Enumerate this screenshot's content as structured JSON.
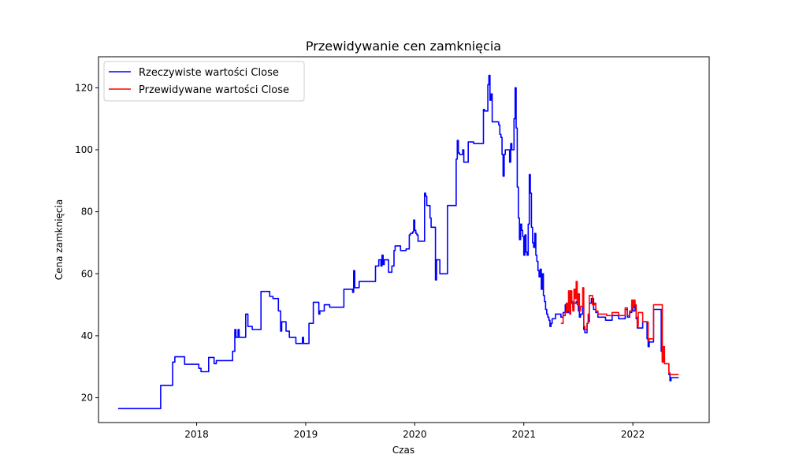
{
  "chart_data": {
    "type": "line",
    "title": "Przewidywanie cen zamknięcia",
    "xlabel": "Czas",
    "ylabel": "Cena zamknięcia",
    "xlim": [
      2017.1,
      2022.7
    ],
    "ylim": [
      12,
      130
    ],
    "xticks": [
      2018,
      2019,
      2020,
      2021,
      2022
    ],
    "yticks": [
      20,
      40,
      60,
      80,
      100,
      120
    ],
    "grid": false,
    "legend_position": "top-left",
    "series": [
      {
        "name": "Rzeczywiste wartości Close",
        "color": "#0000ff",
        "step": true,
        "points": [
          [
            2017.28,
            16.5
          ],
          [
            2017.66,
            16.5
          ],
          [
            2017.67,
            24.0
          ],
          [
            2017.76,
            24.0
          ],
          [
            2017.78,
            31.5
          ],
          [
            2017.8,
            33.2
          ],
          [
            2017.88,
            33.2
          ],
          [
            2017.89,
            30.8
          ],
          [
            2018.0,
            30.8
          ],
          [
            2018.02,
            29.5
          ],
          [
            2018.04,
            28.4
          ],
          [
            2018.1,
            28.4
          ],
          [
            2018.11,
            33.0
          ],
          [
            2018.15,
            33.0
          ],
          [
            2018.16,
            31.0
          ],
          [
            2018.18,
            32.0
          ],
          [
            2018.2,
            32.0
          ],
          [
            2018.3,
            32.0
          ],
          [
            2018.33,
            35.0
          ],
          [
            2018.35,
            42.0
          ],
          [
            2018.36,
            39.5
          ],
          [
            2018.38,
            42.0
          ],
          [
            2018.39,
            39.5
          ],
          [
            2018.44,
            39.5
          ],
          [
            2018.45,
            47.0
          ],
          [
            2018.47,
            43.0
          ],
          [
            2018.51,
            42.0
          ],
          [
            2018.58,
            42.0
          ],
          [
            2018.59,
            54.3
          ],
          [
            2018.66,
            54.3
          ],
          [
            2018.67,
            52.7
          ],
          [
            2018.7,
            52.0
          ],
          [
            2018.74,
            52.0
          ],
          [
            2018.75,
            48.0
          ],
          [
            2018.77,
            41.5
          ],
          [
            2018.78,
            44.5
          ],
          [
            2018.8,
            44.5
          ],
          [
            2018.82,
            41.5
          ],
          [
            2018.83,
            41.5
          ],
          [
            2018.85,
            39.5
          ],
          [
            2018.9,
            39.5
          ],
          [
            2018.91,
            37.5
          ],
          [
            2018.96,
            37.5
          ],
          [
            2018.97,
            39.5
          ],
          [
            2018.98,
            37.5
          ],
          [
            2019.02,
            37.5
          ],
          [
            2019.03,
            44.0
          ],
          [
            2019.06,
            44.0
          ],
          [
            2019.07,
            50.8
          ],
          [
            2019.11,
            50.8
          ],
          [
            2019.12,
            47.0
          ],
          [
            2019.13,
            48.0
          ],
          [
            2019.16,
            48.0
          ],
          [
            2019.17,
            50.0
          ],
          [
            2019.21,
            50.0
          ],
          [
            2019.22,
            49.2
          ],
          [
            2019.34,
            49.2
          ],
          [
            2019.35,
            55.0
          ],
          [
            2019.42,
            55.0
          ],
          [
            2019.43,
            54.0
          ],
          [
            2019.44,
            61.0
          ],
          [
            2019.45,
            55.5
          ],
          [
            2019.48,
            55.5
          ],
          [
            2019.49,
            57.5
          ],
          [
            2019.63,
            57.5
          ],
          [
            2019.64,
            62.5
          ],
          [
            2019.66,
            62.5
          ],
          [
            2019.67,
            64.5
          ],
          [
            2019.69,
            62.5
          ],
          [
            2019.7,
            66.0
          ],
          [
            2019.71,
            63.0
          ],
          [
            2019.72,
            64.5
          ],
          [
            2019.75,
            64.5
          ],
          [
            2019.76,
            60.5
          ],
          [
            2019.78,
            60.5
          ],
          [
            2019.79,
            62.5
          ],
          [
            2019.8,
            62.5
          ],
          [
            2019.81,
            67.5
          ],
          [
            2019.82,
            69.0
          ],
          [
            2019.86,
            69.0
          ],
          [
            2019.87,
            67.5
          ],
          [
            2019.91,
            67.5
          ],
          [
            2019.92,
            68.0
          ],
          [
            2019.94,
            68.0
          ],
          [
            2019.95,
            72.5
          ],
          [
            2019.96,
            73.0
          ],
          [
            2019.98,
            73.5
          ],
          [
            2019.99,
            77.3
          ],
          [
            2020.0,
            74.0
          ],
          [
            2020.01,
            73.0
          ],
          [
            2020.02,
            72.5
          ],
          [
            2020.03,
            70.5
          ],
          [
            2020.08,
            70.5
          ],
          [
            2020.09,
            86.0
          ],
          [
            2020.1,
            85.0
          ],
          [
            2020.11,
            82.0
          ],
          [
            2020.12,
            82.0
          ],
          [
            2020.14,
            78.0
          ],
          [
            2020.15,
            75.0
          ],
          [
            2020.18,
            75.0
          ],
          [
            2020.19,
            58.0
          ],
          [
            2020.2,
            64.5
          ],
          [
            2020.22,
            64.5
          ],
          [
            2020.23,
            60.0
          ],
          [
            2020.29,
            60.0
          ],
          [
            2020.3,
            82.0
          ],
          [
            2020.37,
            82.0
          ],
          [
            2020.38,
            97.0
          ],
          [
            2020.39,
            103.0
          ],
          [
            2020.4,
            99.0
          ],
          [
            2020.41,
            98.5
          ],
          [
            2020.43,
            98.5
          ],
          [
            2020.44,
            100.0
          ],
          [
            2020.45,
            96.0
          ],
          [
            2020.48,
            96.0
          ],
          [
            2020.49,
            102.5
          ],
          [
            2020.53,
            102.5
          ],
          [
            2020.54,
            102.0
          ],
          [
            2020.62,
            102.0
          ],
          [
            2020.63,
            113.0
          ],
          [
            2020.64,
            112.5
          ],
          [
            2020.66,
            112.5
          ],
          [
            2020.67,
            121.0
          ],
          [
            2020.68,
            124.0
          ],
          [
            2020.69,
            116.0
          ],
          [
            2020.7,
            118.0
          ],
          [
            2020.71,
            109.0
          ],
          [
            2020.76,
            109.0
          ],
          [
            2020.77,
            108.0
          ],
          [
            2020.78,
            105.0
          ],
          [
            2020.79,
            104.0
          ],
          [
            2020.8,
            98.5
          ],
          [
            2020.81,
            91.5
          ],
          [
            2020.82,
            98.5
          ],
          [
            2020.83,
            100.0
          ],
          [
            2020.86,
            100.0
          ],
          [
            2020.87,
            96.0
          ],
          [
            2020.88,
            102.0
          ],
          [
            2020.89,
            100.0
          ],
          [
            2020.9,
            100.0
          ],
          [
            2020.91,
            110.0
          ],
          [
            2020.92,
            120.0
          ],
          [
            2020.93,
            107.0
          ],
          [
            2020.94,
            88.0
          ],
          [
            2020.95,
            78.0
          ],
          [
            2020.96,
            71.0
          ],
          [
            2020.97,
            76.0
          ],
          [
            2020.98,
            74.0
          ],
          [
            2020.99,
            72.0
          ],
          [
            2021.0,
            66.0
          ],
          [
            2021.01,
            72.5
          ],
          [
            2021.02,
            67.0
          ],
          [
            2021.03,
            66.0
          ],
          [
            2021.04,
            76.0
          ],
          [
            2021.05,
            92.0
          ],
          [
            2021.06,
            86.0
          ],
          [
            2021.07,
            75.0
          ],
          [
            2021.08,
            70.0
          ],
          [
            2021.09,
            68.5
          ],
          [
            2021.1,
            73.0
          ],
          [
            2021.11,
            66.0
          ],
          [
            2021.12,
            64.0
          ],
          [
            2021.13,
            61.0
          ],
          [
            2021.14,
            59.0
          ],
          [
            2021.15,
            61.5
          ],
          [
            2021.16,
            55.0
          ],
          [
            2021.17,
            60.0
          ],
          [
            2021.18,
            53.0
          ],
          [
            2021.19,
            51.0
          ],
          [
            2021.2,
            48.5
          ],
          [
            2021.21,
            47.0
          ],
          [
            2021.22,
            46.0
          ],
          [
            2021.23,
            45.0
          ],
          [
            2021.24,
            43.0
          ],
          [
            2021.25,
            44.0
          ],
          [
            2021.26,
            45.5
          ],
          [
            2021.28,
            45.5
          ],
          [
            2021.29,
            47.0
          ],
          [
            2021.31,
            47.0
          ],
          [
            2021.32,
            47.0
          ],
          [
            2021.34,
            46.0
          ],
          [
            2021.36,
            47.5
          ],
          [
            2021.38,
            50.0
          ],
          [
            2021.39,
            49.5
          ],
          [
            2021.4,
            47.5
          ],
          [
            2021.41,
            49.0
          ],
          [
            2021.43,
            52.5
          ],
          [
            2021.44,
            50.5
          ],
          [
            2021.45,
            49.0
          ],
          [
            2021.46,
            50.5
          ],
          [
            2021.48,
            51.0
          ],
          [
            2021.5,
            48.0
          ],
          [
            2021.51,
            46.0
          ],
          [
            2021.52,
            47.0
          ],
          [
            2021.54,
            49.5
          ],
          [
            2021.55,
            42.0
          ],
          [
            2021.56,
            41.0
          ],
          [
            2021.58,
            44.0
          ],
          [
            2021.59,
            44.5
          ],
          [
            2021.6,
            50.5
          ],
          [
            2021.62,
            52.0
          ],
          [
            2021.64,
            48.5
          ],
          [
            2021.66,
            47.5
          ],
          [
            2021.68,
            46.0
          ],
          [
            2021.74,
            46.0
          ],
          [
            2021.75,
            45.0
          ],
          [
            2021.8,
            45.0
          ],
          [
            2021.81,
            46.5
          ],
          [
            2021.86,
            46.5
          ],
          [
            2021.87,
            45.5
          ],
          [
            2021.92,
            45.5
          ],
          [
            2021.93,
            48.5
          ],
          [
            2021.95,
            46.0
          ],
          [
            2021.97,
            47.5
          ],
          [
            2021.99,
            50.0
          ],
          [
            2022.0,
            48.0
          ],
          [
            2022.02,
            50.0
          ],
          [
            2022.03,
            45.5
          ],
          [
            2022.04,
            42.5
          ],
          [
            2022.08,
            42.5
          ],
          [
            2022.09,
            44.5
          ],
          [
            2022.12,
            44.5
          ],
          [
            2022.13,
            39.0
          ],
          [
            2022.14,
            36.5
          ],
          [
            2022.15,
            38.0
          ],
          [
            2022.17,
            38.0
          ],
          [
            2022.18,
            38.0
          ],
          [
            2022.19,
            48.5
          ],
          [
            2022.25,
            48.5
          ],
          [
            2022.26,
            35.0
          ],
          [
            2022.27,
            31.5
          ],
          [
            2022.28,
            33.0
          ],
          [
            2022.29,
            31.0
          ],
          [
            2022.31,
            31.0
          ],
          [
            2022.33,
            27.5
          ],
          [
            2022.34,
            25.5
          ],
          [
            2022.35,
            26.5
          ],
          [
            2022.42,
            26.5
          ]
        ]
      },
      {
        "name": "Przewidywane wartości Close",
        "color": "#ff0000",
        "step": true,
        "points": [
          [
            2021.34,
            44.0
          ],
          [
            2021.36,
            46.5
          ],
          [
            2021.38,
            47.5
          ],
          [
            2021.39,
            50.5
          ],
          [
            2021.4,
            48.0
          ],
          [
            2021.41,
            54.5
          ],
          [
            2021.42,
            47.0
          ],
          [
            2021.43,
            54.5
          ],
          [
            2021.44,
            51.0
          ],
          [
            2021.45,
            48.0
          ],
          [
            2021.46,
            55.0
          ],
          [
            2021.47,
            52.0
          ],
          [
            2021.48,
            57.5
          ],
          [
            2021.49,
            50.0
          ],
          [
            2021.5,
            53.5
          ],
          [
            2021.51,
            48.0
          ],
          [
            2021.52,
            49.5
          ],
          [
            2021.54,
            55.5
          ],
          [
            2021.55,
            43.0
          ],
          [
            2021.56,
            42.0
          ],
          [
            2021.58,
            44.0
          ],
          [
            2021.59,
            47.0
          ],
          [
            2021.6,
            53.0
          ],
          [
            2021.62,
            53.0
          ],
          [
            2021.63,
            50.0
          ],
          [
            2021.65,
            50.5
          ],
          [
            2021.66,
            48.0
          ],
          [
            2021.68,
            47.0
          ],
          [
            2021.74,
            47.0
          ],
          [
            2021.76,
            46.5
          ],
          [
            2021.8,
            46.5
          ],
          [
            2021.81,
            47.5
          ],
          [
            2021.86,
            47.5
          ],
          [
            2021.87,
            46.5
          ],
          [
            2021.92,
            46.5
          ],
          [
            2021.93,
            49.0
          ],
          [
            2021.95,
            46.5
          ],
          [
            2021.97,
            48.0
          ],
          [
            2021.99,
            51.5
          ],
          [
            2022.0,
            49.0
          ],
          [
            2022.01,
            51.5
          ],
          [
            2022.02,
            50.0
          ],
          [
            2022.03,
            46.0
          ],
          [
            2022.04,
            43.0
          ],
          [
            2022.05,
            47.5
          ],
          [
            2022.08,
            47.5
          ],
          [
            2022.09,
            44.5
          ],
          [
            2022.13,
            44.5
          ],
          [
            2022.14,
            38.5
          ],
          [
            2022.15,
            39.0
          ],
          [
            2022.18,
            39.0
          ],
          [
            2022.19,
            50.0
          ],
          [
            2022.26,
            50.0
          ],
          [
            2022.27,
            31.5
          ],
          [
            2022.28,
            36.5
          ],
          [
            2022.29,
            31.0
          ],
          [
            2022.32,
            31.0
          ],
          [
            2022.33,
            28.0
          ],
          [
            2022.34,
            27.5
          ],
          [
            2022.42,
            27.5
          ]
        ]
      }
    ]
  }
}
